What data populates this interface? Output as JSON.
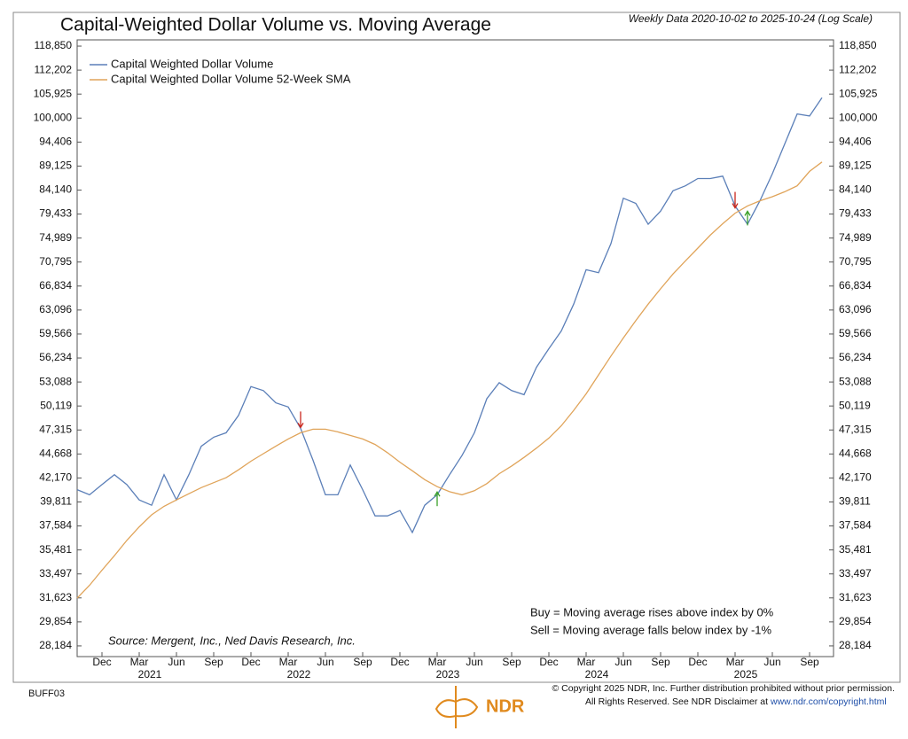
{
  "chart_data": {
    "type": "line",
    "title": "Capital-Weighted Dollar Volume vs. Moving Average",
    "subtitle": "Weekly Data 2020-10-02 to 2025-10-24 (Log Scale)",
    "x": [
      "2020-10",
      "2020-11",
      "2020-12",
      "2021-01",
      "2021-02",
      "2021-03",
      "2021-04",
      "2021-05",
      "2021-06",
      "2021-07",
      "2021-08",
      "2021-09",
      "2021-10",
      "2021-11",
      "2021-12",
      "2022-01",
      "2022-02",
      "2022-03",
      "2022-04",
      "2022-05",
      "2022-06",
      "2022-07",
      "2022-08",
      "2022-09",
      "2022-10",
      "2022-11",
      "2022-12",
      "2023-01",
      "2023-02",
      "2023-03",
      "2023-04",
      "2023-05",
      "2023-06",
      "2023-07",
      "2023-08",
      "2023-09",
      "2023-10",
      "2023-11",
      "2023-12",
      "2024-01",
      "2024-02",
      "2024-03",
      "2024-04",
      "2024-05",
      "2024-06",
      "2024-07",
      "2024-08",
      "2024-09",
      "2024-10",
      "2024-11",
      "2024-12",
      "2025-01",
      "2025-02",
      "2025-03",
      "2025-04",
      "2025-05",
      "2025-06",
      "2025-07",
      "2025-08",
      "2025-09",
      "2025-10"
    ],
    "series": [
      {
        "name": "Capital Weighted Dollar Volume",
        "color": "#5b7fb8",
        "values": [
          41000,
          40500,
          41500,
          42500,
          41500,
          40000,
          39500,
          42500,
          40000,
          42500,
          45500,
          46500,
          47000,
          49000,
          52500,
          52000,
          50500,
          50000,
          47500,
          44000,
          40500,
          40500,
          43500,
          41000,
          38500,
          38500,
          39000,
          37000,
          39500,
          40500,
          42500,
          44500,
          47000,
          51000,
          53000,
          52000,
          51500,
          55000,
          57500,
          60000,
          64000,
          69500,
          69000,
          74000,
          82500,
          81500,
          77500,
          80000,
          84000,
          85000,
          86500,
          86500,
          87000,
          81000,
          77500,
          82000,
          87500,
          94000,
          101000,
          100500,
          105000
        ]
      },
      {
        "name": "Capital Weighted Dollar Volume 52-Week SMA",
        "color": "#e0a45a",
        "values": [
          31600,
          32600,
          33800,
          35000,
          36300,
          37500,
          38600,
          39400,
          40000,
          40600,
          41200,
          41700,
          42200,
          43000,
          43900,
          44700,
          45500,
          46300,
          47000,
          47400,
          47400,
          47100,
          46700,
          46300,
          45700,
          44800,
          43800,
          42900,
          42000,
          41300,
          40800,
          40500,
          40900,
          41600,
          42600,
          43400,
          44300,
          45300,
          46400,
          47800,
          49600,
          51600,
          54000,
          56500,
          59000,
          61500,
          64000,
          66400,
          68800,
          71000,
          73200,
          75500,
          77600,
          79600,
          81000,
          82000,
          82800,
          83800,
          85000,
          88000,
          90000
        ]
      }
    ],
    "log_scale": true,
    "ylim": [
      27470,
      120640
    ],
    "yticks": [
      {
        "value": 28184,
        "label": "28,184"
      },
      {
        "value": 29854,
        "label": "29,854"
      },
      {
        "value": 31623,
        "label": "31,623"
      },
      {
        "value": 33497,
        "label": "33,497"
      },
      {
        "value": 35481,
        "label": "35,481"
      },
      {
        "value": 37584,
        "label": "37,584"
      },
      {
        "value": 39811,
        "label": "39,811"
      },
      {
        "value": 42170,
        "label": "42,170"
      },
      {
        "value": 44668,
        "label": "44,668"
      },
      {
        "value": 47315,
        "label": "47,315"
      },
      {
        "value": 50119,
        "label": "50,119"
      },
      {
        "value": 53088,
        "label": "53,088"
      },
      {
        "value": 56234,
        "label": "56,234"
      },
      {
        "value": 59566,
        "label": "59,566"
      },
      {
        "value": 63096,
        "label": "63,096"
      },
      {
        "value": 66834,
        "label": "66,834"
      },
      {
        "value": 70795,
        "label": "70,795"
      },
      {
        "value": 74989,
        "label": "74,989"
      },
      {
        "value": 79433,
        "label": "79,433"
      },
      {
        "value": 84140,
        "label": "84,140"
      },
      {
        "value": 89125,
        "label": "89,125"
      },
      {
        "value": 94406,
        "label": "94,406"
      },
      {
        "value": 100000,
        "label": "100,000"
      },
      {
        "value": 105925,
        "label": "105,925"
      },
      {
        "value": 112202,
        "label": "112,202"
      },
      {
        "value": 118850,
        "label": "118,850"
      }
    ],
    "xticks": [
      {
        "value": "2020-12",
        "label": "Dec"
      },
      {
        "value": "2021-03",
        "label": "Mar"
      },
      {
        "value": "2021-06",
        "label": "Jun"
      },
      {
        "value": "2021-09",
        "label": "Sep"
      },
      {
        "value": "2021-12",
        "label": "Dec"
      },
      {
        "value": "2022-03",
        "label": "Mar"
      },
      {
        "value": "2022-06",
        "label": "Jun"
      },
      {
        "value": "2022-09",
        "label": "Sep"
      },
      {
        "value": "2022-12",
        "label": "Dec"
      },
      {
        "value": "2023-03",
        "label": "Mar"
      },
      {
        "value": "2023-06",
        "label": "Jun"
      },
      {
        "value": "2023-09",
        "label": "Sep"
      },
      {
        "value": "2023-12",
        "label": "Dec"
      },
      {
        "value": "2024-03",
        "label": "Mar"
      },
      {
        "value": "2024-06",
        "label": "Jun"
      },
      {
        "value": "2024-09",
        "label": "Sep"
      },
      {
        "value": "2024-12",
        "label": "Dec"
      },
      {
        "value": "2025-03",
        "label": "Mar"
      },
      {
        "value": "2025-06",
        "label": "Jun"
      },
      {
        "value": "2025-09",
        "label": "Sep"
      }
    ],
    "years": [
      "2021",
      "2022",
      "2023",
      "2024",
      "2025"
    ],
    "sell_signals": [
      "2022-04",
      "2025-03"
    ],
    "buy_signals": [
      "2023-03",
      "2025-04"
    ],
    "legend_position": "upper left",
    "annotations": [
      "Buy = Moving average rises above index by 0%",
      "Sell = Moving average falls below index by -1%"
    ],
    "source": "Source:  Mergent, Inc., Ned Davis Research, Inc."
  },
  "footer": {
    "code": "BUFF03",
    "copyright": "© Copyright 2025 NDR, Inc. Further distribution prohibited without prior permission.",
    "rights": "All Rights Reserved. See NDR Disclaimer at",
    "link": "www.ndr.com/copyright.html",
    "logo": "NDR"
  }
}
